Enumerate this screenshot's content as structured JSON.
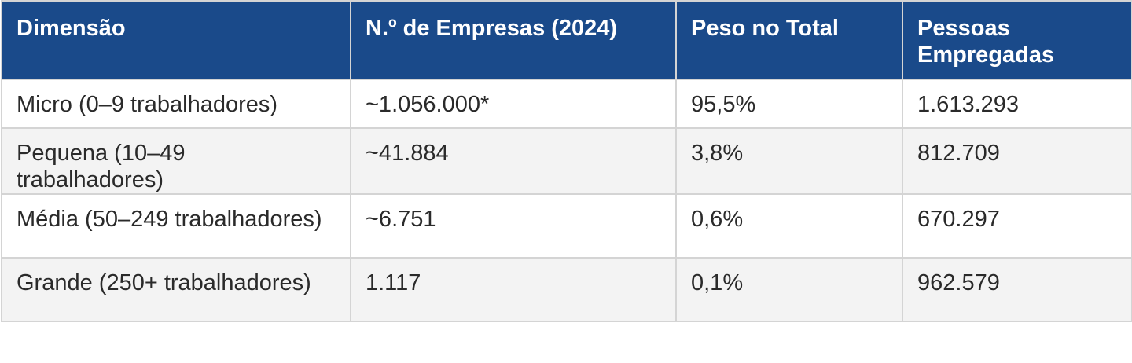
{
  "table": {
    "headers": [
      "Dimensão",
      "N.º de Empresas (2024)",
      "Peso no Total",
      "Pessoas Empregadas"
    ],
    "rows": [
      [
        "Micro (0–9 trabalhadores)",
        "~1.056.000*",
        "95,5%",
        "1.613.293"
      ],
      [
        "Pequena (10–49 trabalhadores)",
        "~41.884",
        "3,8%",
        "812.709"
      ],
      [
        "Média (50–249 trabalhadores)",
        "~6.751",
        "0,6%",
        "670.297"
      ],
      [
        "Grande (250+ trabalhadores)",
        "1.117",
        "0,1%",
        "962.579"
      ]
    ]
  },
  "colors": {
    "header_bg": "#1a4a8a",
    "header_text": "#ffffff",
    "row_alt_bg": "#f3f3f3",
    "border": "#d4d4d4"
  }
}
